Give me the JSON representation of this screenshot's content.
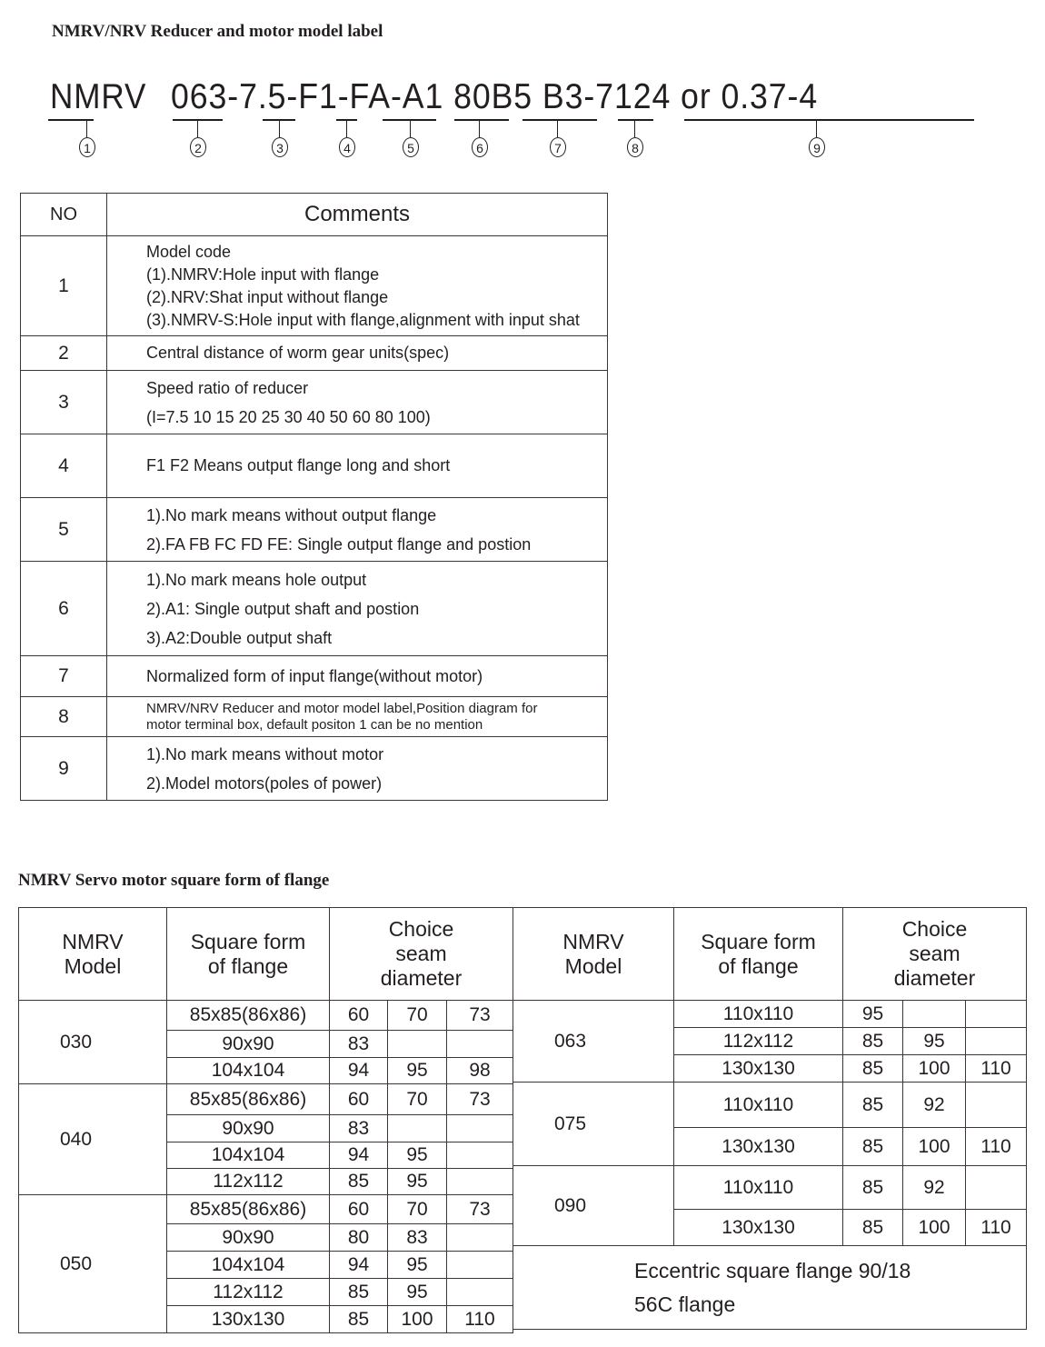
{
  "header": {
    "title": "NMRV/NRV Reducer and motor model  label"
  },
  "model_label": {
    "prefix": "NMRV",
    "code": "063-7.5-F1-FA-A1 80B5 B3-7124 or 0.37-4",
    "markers": [
      "1",
      "2",
      "3",
      "4",
      "5",
      "6",
      "7",
      "8",
      "9"
    ]
  },
  "comments_table": {
    "headers": {
      "no": "NO",
      "comments": "Comments"
    },
    "rows": [
      {
        "no": "1",
        "lines": [
          "Model code",
          "(1).NMRV:Hole input with flange",
          "(2).NRV:Shat input without flange",
          "(3).NMRV-S:Hole input with flange,alignment with input shat"
        ]
      },
      {
        "no": "2",
        "lines": [
          "Central distance of worm gear units(spec)"
        ]
      },
      {
        "no": "3",
        "lines": [
          "Speed ratio of reducer",
          "(I=7.5 10 15 20 25 30 40 50 60 80 100)"
        ]
      },
      {
        "no": "4",
        "lines": [
          "F1 F2 Means output flange long and short"
        ]
      },
      {
        "no": "5",
        "lines": [
          "1).No mark means without output flange",
          "2).FA FB FC FD FE: Single output flange and postion"
        ]
      },
      {
        "no": "6",
        "lines": [
          "1).No mark means hole output",
          "2).A1: Single output shaft and postion",
          "3).A2:Double output shaft"
        ]
      },
      {
        "no": "7",
        "lines": [
          "Normalized form of input flange(without motor)"
        ]
      },
      {
        "no": "8",
        "lines": [
          "NMRV/NRV Reducer and motor model  label,Position diagram for",
          "motor terminal box, default positon 1 can be no mention"
        ]
      },
      {
        "no": "9",
        "lines": [
          "1).No mark means without motor",
          "2).Model motors(poles of power)"
        ]
      }
    ]
  },
  "flange_section": {
    "title": "NMRV Servo motor square form of flange",
    "headers": {
      "model": "NMRV Model",
      "square": "Square form of flange",
      "seam": "Choice seam diameter"
    },
    "left_groups": [
      {
        "model": "030",
        "rows": [
          [
            "85x85(86x86)",
            "60",
            "70",
            "73"
          ],
          [
            "90x90",
            "83",
            "",
            ""
          ],
          [
            "104x104",
            "94",
            "95",
            "98"
          ]
        ]
      },
      {
        "model": "040",
        "rows": [
          [
            "85x85(86x86)",
            "60",
            "70",
            "73"
          ],
          [
            "90x90",
            "83",
            "",
            ""
          ],
          [
            "104x104",
            "94",
            "95",
            ""
          ],
          [
            "112x112",
            "85",
            "95",
            ""
          ]
        ]
      },
      {
        "model": "050",
        "rows": [
          [
            "85x85(86x86)",
            "60",
            "70",
            "73"
          ],
          [
            "90x90",
            "80",
            "83",
            ""
          ],
          [
            "104x104",
            "94",
            "95",
            ""
          ],
          [
            "112x112",
            "85",
            "95",
            ""
          ],
          [
            "130x130",
            "85",
            "100",
            "110"
          ]
        ]
      }
    ],
    "right_groups": [
      {
        "model": "063",
        "rows": [
          [
            "110x110",
            "95",
            "",
            ""
          ],
          [
            "112x112",
            "85",
            "95",
            ""
          ],
          [
            "130x130",
            "85",
            "100",
            "110"
          ]
        ]
      },
      {
        "model": "075",
        "rows": [
          [
            "110x110",
            "85",
            "92",
            ""
          ],
          [
            "130x130",
            "85",
            "100",
            "110"
          ]
        ]
      },
      {
        "model": "090",
        "rows": [
          [
            "110x110",
            "85",
            "92",
            ""
          ],
          [
            "130x130",
            "85",
            "100",
            "110"
          ]
        ]
      }
    ],
    "footer_notes": [
      "Eccentric square flange 90/18",
      "56C flange"
    ]
  }
}
